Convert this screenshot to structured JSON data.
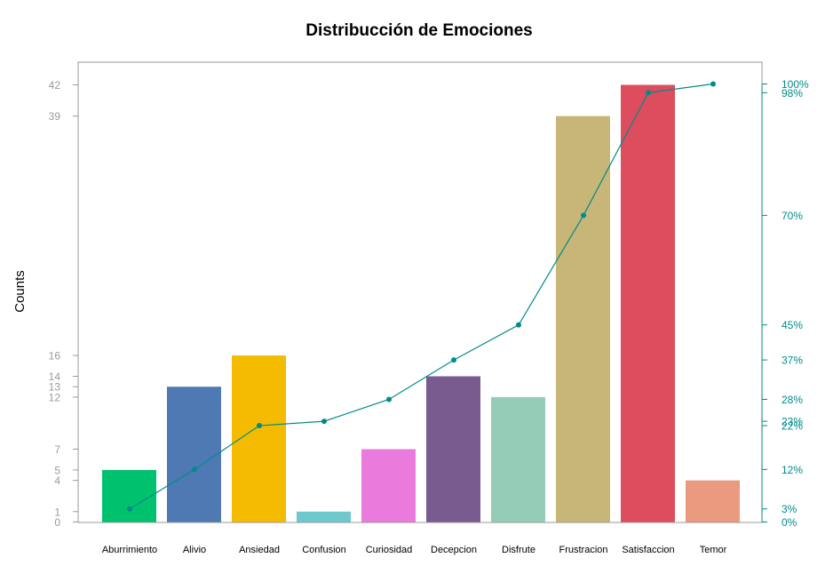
{
  "chart_data": {
    "type": "bar",
    "title": "Distribucción de Emociones",
    "xlabel": "",
    "ylabel": "Counts",
    "categories": [
      "Aburrimiento",
      "Alivio",
      "Ansiedad",
      "Confusion",
      "Curiosidad",
      "Decepcion",
      "Disfrute",
      "Frustracion",
      "Satisfaccion",
      "Temor"
    ],
    "values": [
      5,
      13,
      16,
      1,
      7,
      14,
      12,
      39,
      42,
      4
    ],
    "bar_colors": [
      "#00c16e",
      "#4e79b3",
      "#f5bb00",
      "#6ec9cc",
      "#e87bdb",
      "#7a5b90",
      "#94ccb7",
      "#c7b677",
      "#dd4d5e",
      "#e99a7f"
    ],
    "ylim": [
      0,
      44
    ],
    "y_ticks": [
      0,
      1,
      4,
      5,
      7,
      12,
      13,
      14,
      16,
      39,
      42
    ],
    "line_series": {
      "values": [
        3,
        12,
        22,
        23,
        28,
        37,
        45,
        70,
        98,
        100
      ],
      "unit": "%",
      "color": "#008b8b"
    },
    "right_axis_ticks": [
      "0%",
      "3%",
      "12%",
      "22%",
      "23%",
      "28%",
      "37%",
      "45%",
      "70%",
      "98%",
      "100%"
    ],
    "right_axis_color": "#008b8b",
    "grid": false
  }
}
